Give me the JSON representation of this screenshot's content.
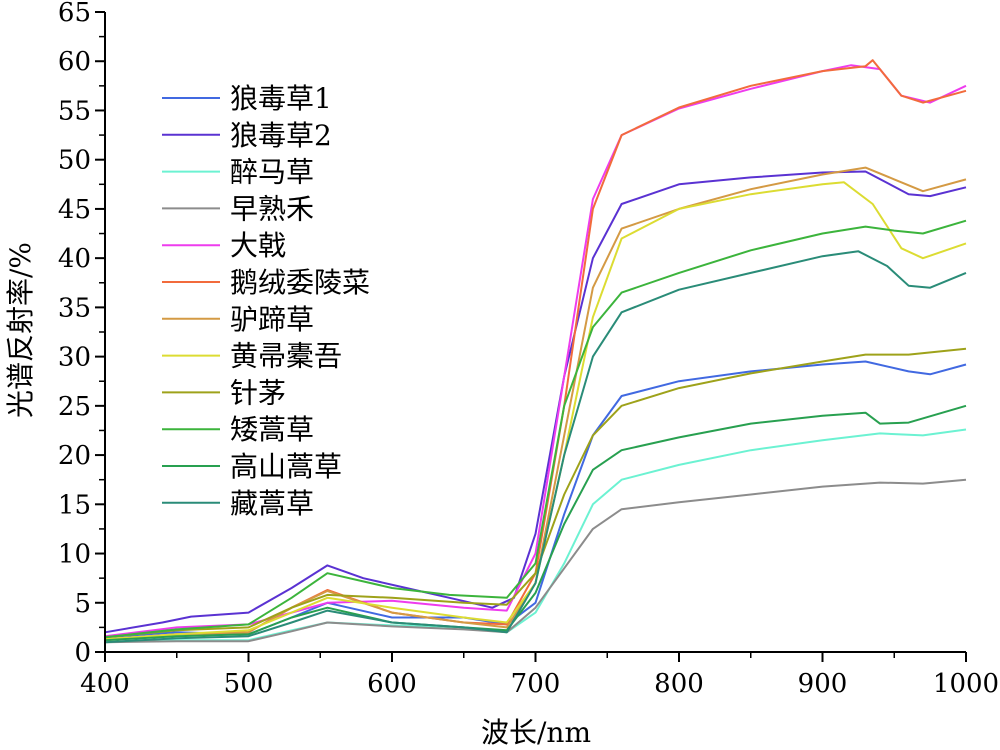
{
  "chart_data": {
    "type": "line",
    "xlabel": "波长/nm",
    "ylabel": "光谱反射率/%",
    "xlim": [
      400,
      1000
    ],
    "ylim": [
      0,
      65
    ],
    "xticks": [
      400,
      500,
      600,
      700,
      800,
      900,
      1000
    ],
    "yticks": [
      0,
      5,
      10,
      15,
      20,
      25,
      30,
      35,
      40,
      45,
      50,
      55,
      60,
      65
    ],
    "legend_position": "top-left",
    "grid": false,
    "series": [
      {
        "name": "狼毒草1",
        "color": "#4169e1",
        "points": [
          [
            400,
            1.5
          ],
          [
            450,
            2.0
          ],
          [
            500,
            1.8
          ],
          [
            530,
            3.5
          ],
          [
            555,
            5.0
          ],
          [
            600,
            3.5
          ],
          [
            650,
            3.5
          ],
          [
            680,
            2.8
          ],
          [
            700,
            5.0
          ],
          [
            720,
            14
          ],
          [
            740,
            22
          ],
          [
            760,
            26
          ],
          [
            800,
            27.5
          ],
          [
            850,
            28.5
          ],
          [
            900,
            29.2
          ],
          [
            930,
            29.5
          ],
          [
            960,
            28.5
          ],
          [
            975,
            28.2
          ],
          [
            1000,
            29.2
          ]
        ]
      },
      {
        "name": "狼毒草2",
        "color": "#5a32d2",
        "points": [
          [
            400,
            2.0
          ],
          [
            440,
            3.0
          ],
          [
            460,
            3.6
          ],
          [
            500,
            4.0
          ],
          [
            530,
            6.5
          ],
          [
            555,
            8.8
          ],
          [
            580,
            7.5
          ],
          [
            610,
            6.5
          ],
          [
            640,
            5.5
          ],
          [
            670,
            4.5
          ],
          [
            685,
            5.5
          ],
          [
            700,
            12
          ],
          [
            720,
            28
          ],
          [
            740,
            40
          ],
          [
            760,
            45.5
          ],
          [
            800,
            47.5
          ],
          [
            850,
            48.2
          ],
          [
            900,
            48.7
          ],
          [
            930,
            48.8
          ],
          [
            960,
            46.5
          ],
          [
            975,
            46.3
          ],
          [
            1000,
            47.2
          ]
        ]
      },
      {
        "name": "醉马草",
        "color": "#6cf2d2",
        "points": [
          [
            400,
            1.0
          ],
          [
            450,
            1.2
          ],
          [
            500,
            1.2
          ],
          [
            530,
            2.2
          ],
          [
            555,
            3.0
          ],
          [
            600,
            2.7
          ],
          [
            650,
            2.5
          ],
          [
            680,
            2.0
          ],
          [
            700,
            4.0
          ],
          [
            720,
            9.0
          ],
          [
            740,
            15
          ],
          [
            760,
            17.5
          ],
          [
            800,
            19.0
          ],
          [
            850,
            20.5
          ],
          [
            900,
            21.5
          ],
          [
            940,
            22.2
          ],
          [
            970,
            22.0
          ],
          [
            1000,
            22.6
          ]
        ]
      },
      {
        "name": "早熟禾",
        "color": "#8c8c8c",
        "points": [
          [
            400,
            1.0
          ],
          [
            450,
            1.1
          ],
          [
            500,
            1.1
          ],
          [
            530,
            2.1
          ],
          [
            555,
            3.0
          ],
          [
            600,
            2.6
          ],
          [
            650,
            2.3
          ],
          [
            680,
            2.0
          ],
          [
            700,
            4.5
          ],
          [
            720,
            8.5
          ],
          [
            740,
            12.5
          ],
          [
            760,
            14.5
          ],
          [
            800,
            15.2
          ],
          [
            850,
            16.0
          ],
          [
            900,
            16.8
          ],
          [
            940,
            17.2
          ],
          [
            970,
            17.1
          ],
          [
            1000,
            17.5
          ]
        ]
      },
      {
        "name": "大戟",
        "color": "#ee3cee",
        "points": [
          [
            400,
            1.6
          ],
          [
            450,
            2.5
          ],
          [
            500,
            2.8
          ],
          [
            530,
            4.0
          ],
          [
            555,
            5.0
          ],
          [
            600,
            5.2
          ],
          [
            650,
            4.5
          ],
          [
            680,
            4.2
          ],
          [
            700,
            10
          ],
          [
            720,
            28
          ],
          [
            740,
            46
          ],
          [
            760,
            52.5
          ],
          [
            800,
            55.2
          ],
          [
            850,
            57.2
          ],
          [
            900,
            59.0
          ],
          [
            920,
            59.6
          ],
          [
            940,
            59.2
          ],
          [
            955,
            56.5
          ],
          [
            975,
            55.8
          ],
          [
            1000,
            57.5
          ]
        ]
      },
      {
        "name": "鹅绒委陵菜",
        "color": "#f26b3c",
        "points": [
          [
            400,
            1.2
          ],
          [
            450,
            1.8
          ],
          [
            500,
            2.0
          ],
          [
            530,
            4.5
          ],
          [
            555,
            6.3
          ],
          [
            600,
            4.0
          ],
          [
            650,
            3.0
          ],
          [
            680,
            2.8
          ],
          [
            700,
            8
          ],
          [
            720,
            25
          ],
          [
            740,
            45
          ],
          [
            760,
            52.5
          ],
          [
            800,
            55.3
          ],
          [
            850,
            57.5
          ],
          [
            900,
            59.0
          ],
          [
            930,
            59.5
          ],
          [
            935,
            60.1
          ],
          [
            955,
            56.5
          ],
          [
            970,
            55.8
          ],
          [
            1000,
            57.0
          ]
        ]
      },
      {
        "name": "驴蹄草",
        "color": "#d49a44",
        "points": [
          [
            400,
            1.3
          ],
          [
            450,
            1.8
          ],
          [
            500,
            2.0
          ],
          [
            530,
            4.5
          ],
          [
            555,
            6.2
          ],
          [
            600,
            4.0
          ],
          [
            650,
            3.0
          ],
          [
            680,
            2.5
          ],
          [
            700,
            7.0
          ],
          [
            720,
            22
          ],
          [
            740,
            37
          ],
          [
            760,
            43.0
          ],
          [
            800,
            45.0
          ],
          [
            850,
            47.0
          ],
          [
            900,
            48.5
          ],
          [
            930,
            49.2
          ],
          [
            950,
            48.0
          ],
          [
            970,
            46.8
          ],
          [
            1000,
            48.0
          ]
        ]
      },
      {
        "name": "黄帚橐吾",
        "color": "#dcdc32",
        "points": [
          [
            400,
            1.3
          ],
          [
            450,
            1.8
          ],
          [
            500,
            2.2
          ],
          [
            530,
            4.0
          ],
          [
            555,
            5.5
          ],
          [
            600,
            4.5
          ],
          [
            650,
            3.5
          ],
          [
            680,
            3.0
          ],
          [
            700,
            7.0
          ],
          [
            720,
            20
          ],
          [
            740,
            34
          ],
          [
            760,
            42.0
          ],
          [
            800,
            45.0
          ],
          [
            850,
            46.5
          ],
          [
            900,
            47.5
          ],
          [
            915,
            47.7
          ],
          [
            935,
            45.5
          ],
          [
            955,
            41.0
          ],
          [
            970,
            40.0
          ],
          [
            1000,
            41.5
          ]
        ]
      },
      {
        "name": "针茅",
        "color": "#9ea21a",
        "points": [
          [
            400,
            1.5
          ],
          [
            450,
            2.2
          ],
          [
            500,
            2.5
          ],
          [
            530,
            4.5
          ],
          [
            555,
            5.8
          ],
          [
            600,
            5.5
          ],
          [
            650,
            5.0
          ],
          [
            680,
            4.8
          ],
          [
            700,
            8.0
          ],
          [
            720,
            16
          ],
          [
            740,
            22
          ],
          [
            760,
            25.0
          ],
          [
            800,
            26.8
          ],
          [
            850,
            28.3
          ],
          [
            900,
            29.5
          ],
          [
            930,
            30.2
          ],
          [
            960,
            30.2
          ],
          [
            1000,
            30.8
          ]
        ]
      },
      {
        "name": "矮蒿草",
        "color": "#3cb43c",
        "points": [
          [
            400,
            1.5
          ],
          [
            450,
            2.3
          ],
          [
            500,
            2.8
          ],
          [
            530,
            5.5
          ],
          [
            555,
            8.0
          ],
          [
            600,
            6.5
          ],
          [
            640,
            5.8
          ],
          [
            680,
            5.5
          ],
          [
            700,
            9.0
          ],
          [
            720,
            25
          ],
          [
            740,
            33
          ],
          [
            760,
            36.5
          ],
          [
            800,
            38.5
          ],
          [
            850,
            40.8
          ],
          [
            900,
            42.5
          ],
          [
            930,
            43.2
          ],
          [
            950,
            42.8
          ],
          [
            970,
            42.5
          ],
          [
            1000,
            43.8
          ]
        ]
      },
      {
        "name": "高山蒿草",
        "color": "#28a050",
        "points": [
          [
            400,
            1.2
          ],
          [
            450,
            1.6
          ],
          [
            500,
            1.8
          ],
          [
            530,
            3.5
          ],
          [
            555,
            4.5
          ],
          [
            600,
            3.0
          ],
          [
            650,
            2.5
          ],
          [
            680,
            2.2
          ],
          [
            700,
            6.0
          ],
          [
            720,
            13
          ],
          [
            740,
            18.5
          ],
          [
            760,
            20.5
          ],
          [
            800,
            21.8
          ],
          [
            850,
            23.2
          ],
          [
            900,
            24.0
          ],
          [
            930,
            24.3
          ],
          [
            940,
            23.2
          ],
          [
            960,
            23.3
          ],
          [
            1000,
            25.0
          ]
        ]
      },
      {
        "name": "藏蒿草",
        "color": "#2a8c78",
        "points": [
          [
            400,
            1.0
          ],
          [
            450,
            1.4
          ],
          [
            500,
            1.6
          ],
          [
            530,
            3.0
          ],
          [
            555,
            4.2
          ],
          [
            600,
            3.0
          ],
          [
            650,
            2.5
          ],
          [
            680,
            2.0
          ],
          [
            700,
            7.0
          ],
          [
            720,
            20
          ],
          [
            740,
            30
          ],
          [
            760,
            34.5
          ],
          [
            800,
            36.8
          ],
          [
            850,
            38.5
          ],
          [
            900,
            40.2
          ],
          [
            925,
            40.7
          ],
          [
            945,
            39.2
          ],
          [
            960,
            37.2
          ],
          [
            975,
            37.0
          ],
          [
            1000,
            38.5
          ]
        ]
      }
    ]
  }
}
